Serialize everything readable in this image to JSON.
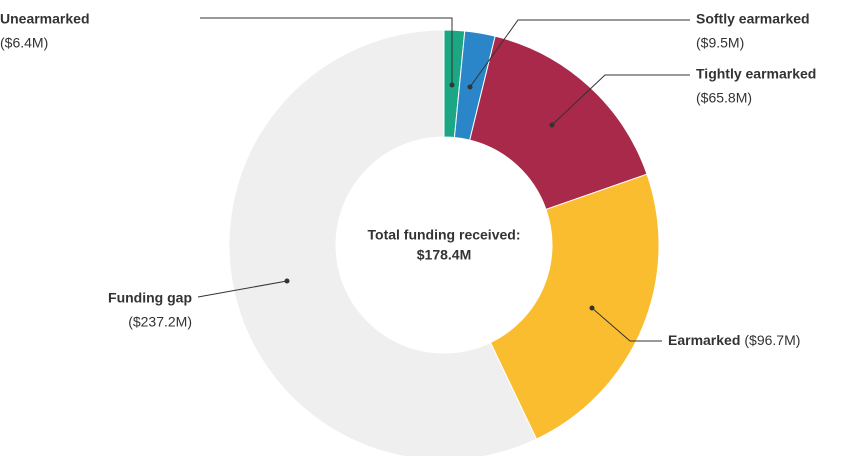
{
  "chart_data": {
    "type": "donut",
    "categories": [
      "Unearmarked",
      "Softly earmarked",
      "Tightly earmarked",
      "Earmarked",
      "Funding gap"
    ],
    "values": [
      6.4,
      9.5,
      65.8,
      96.7,
      237.2
    ],
    "value_labels": [
      "($6.4M)",
      "($9.5M)",
      "($65.8M)",
      "($96.7M)",
      "($237.2M)"
    ],
    "colors": [
      "#1ba784",
      "#2a86c8",
      "#a8294a",
      "#fbbd30",
      "#efefef"
    ],
    "center_title": "Total funding received:",
    "center_value": "$178.4M"
  }
}
